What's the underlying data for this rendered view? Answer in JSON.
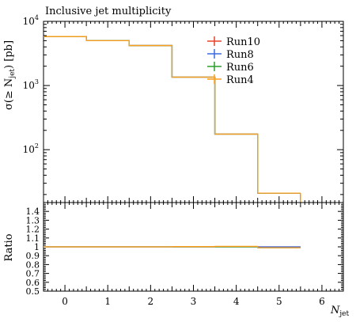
{
  "chart_data": {
    "type": "step",
    "title": "Inclusive jet multiplicity",
    "xlabel_main": "N",
    "xlabel_sub": "jet",
    "ylabel": "σ(≥ N_jet) [pb]",
    "ylabel_parts": {
      "sigma": "σ(≥ N",
      "sub": "jet",
      "rest": ") [pb]"
    },
    "yscale": "log",
    "ylim": [
      15,
      10000
    ],
    "xlim": [
      -0.5,
      6.5
    ],
    "x_ticks": [
      "0",
      "1",
      "2",
      "3",
      "4",
      "5",
      "6"
    ],
    "y_tick_labels": [
      {
        "value": 10000,
        "base": "10",
        "exp": "4"
      },
      {
        "value": 1000,
        "base": "10",
        "exp": "3"
      },
      {
        "value": 100,
        "base": "10",
        "exp": "2"
      }
    ],
    "bin_edges": [
      -0.5,
      0.5,
      1.5,
      2.5,
      3.5,
      4.5,
      5.5
    ],
    "series": [
      {
        "name": "Run10",
        "color": "#e8432a",
        "values": [
          5800,
          5000,
          4200,
          1350,
          175,
          21
        ]
      },
      {
        "name": "Run8",
        "color": "#3a6be0",
        "values": [
          5800,
          5000,
          4200,
          1350,
          175,
          21
        ]
      },
      {
        "name": "Run6",
        "color": "#2ca02c",
        "values": [
          5800,
          5000,
          4200,
          1350,
          175,
          21
        ]
      },
      {
        "name": "Run4",
        "color": "#ff9f1c",
        "values": [
          5800,
          5000,
          4200,
          1350,
          175,
          21
        ]
      }
    ],
    "ratio": {
      "ylabel": "Ratio",
      "ylim": [
        0.5,
        1.5
      ],
      "y_ticks": [
        "1.4",
        "1.3",
        "1.2",
        "1.1",
        "1",
        "0.9",
        "0.8",
        "0.7",
        "0.6",
        "0.5"
      ],
      "series": [
        {
          "name": "Run10",
          "color": "#e8432a",
          "values": [
            1.0,
            1.0,
            1.0,
            1.0,
            1.0,
            1.0
          ]
        },
        {
          "name": "Run8",
          "color": "#3a6be0",
          "values": [
            1.0,
            1.0,
            1.0,
            1.0,
            1.0,
            1.0
          ]
        },
        {
          "name": "Run6",
          "color": "#2ca02c",
          "values": [
            1.0,
            1.0,
            1.0,
            1.0,
            1.0,
            0.99
          ]
        },
        {
          "name": "Run4",
          "color": "#ff9f1c",
          "values": [
            1.0,
            1.0,
            1.0,
            1.003,
            1.005,
            0.99
          ]
        }
      ]
    }
  }
}
